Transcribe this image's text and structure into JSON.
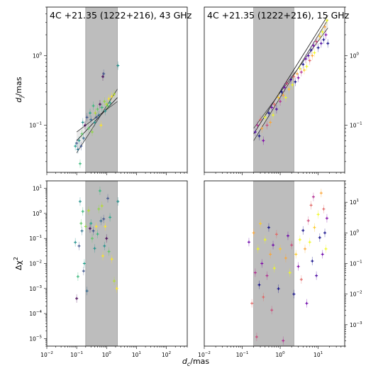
{
  "figure": {
    "xlabel_base": "d",
    "xlabel_sub": "c",
    "xlabel_unit": "/mas"
  },
  "chart_data": [
    {
      "panel": "top-left",
      "type": "scatter",
      "title": "4C +21.35 (1222+216), 43 GHz",
      "ylabel_base": "d",
      "ylabel_sub": "j",
      "ylabel_unit": "/mas",
      "xscale": "log",
      "yscale": "log",
      "xlim": [
        0.01,
        500
      ],
      "ylim": [
        0.021,
        5
      ],
      "y_tick_labels": [
        {
          "value": 0.1,
          "base": "10",
          "exp": "−1"
        },
        {
          "value": 1,
          "base": "10",
          "exp": "0"
        }
      ],
      "y_tick_side": "left",
      "shaded_band": [
        0.2,
        2.3
      ],
      "fit_lines": [
        {
          "x": [
            0.1,
            2.3
          ],
          "y": [
            0.06,
            0.25
          ]
        },
        {
          "x": [
            0.1,
            2.3
          ],
          "y": [
            0.04,
            0.33
          ]
        },
        {
          "x": [
            0.1,
            2.3
          ],
          "y": [
            0.08,
            0.22
          ]
        }
      ],
      "points": [
        {
          "x": 0.09,
          "y": 0.05,
          "c": "#1f9e89"
        },
        {
          "x": 0.1,
          "y": 0.055,
          "c": "#3b528b"
        },
        {
          "x": 0.11,
          "y": 0.045,
          "c": "#2c728e"
        },
        {
          "x": 0.12,
          "y": 0.06,
          "c": "#21918c"
        },
        {
          "x": 0.13,
          "y": 0.028,
          "c": "#35b779"
        },
        {
          "x": 0.14,
          "y": 0.05,
          "c": "#3b528b"
        },
        {
          "x": 0.15,
          "y": 0.075,
          "c": "#5ec962"
        },
        {
          "x": 0.16,
          "y": 0.11,
          "c": "#21918c"
        },
        {
          "x": 0.17,
          "y": 0.065,
          "c": "#31688e"
        },
        {
          "x": 0.19,
          "y": 0.1,
          "c": "#440154"
        },
        {
          "x": 0.22,
          "y": 0.13,
          "c": "#3b528b"
        },
        {
          "x": 0.25,
          "y": 0.09,
          "c": "#5ec962"
        },
        {
          "x": 0.28,
          "y": 0.15,
          "c": "#20a486"
        },
        {
          "x": 0.3,
          "y": 0.12,
          "c": "#31688e"
        },
        {
          "x": 0.33,
          "y": 0.08,
          "c": "#90d743"
        },
        {
          "x": 0.36,
          "y": 0.19,
          "c": "#35b779"
        },
        {
          "x": 0.4,
          "y": 0.11,
          "c": "#21918c"
        },
        {
          "x": 0.42,
          "y": 0.15,
          "c": "#b5de2b"
        },
        {
          "x": 0.45,
          "y": 0.13,
          "c": "#3b528b"
        },
        {
          "x": 0.5,
          "y": 0.17,
          "c": "#5ec962"
        },
        {
          "x": 0.55,
          "y": 0.14,
          "c": "#2c728e"
        },
        {
          "x": 0.6,
          "y": 0.2,
          "c": "#440154"
        },
        {
          "x": 0.65,
          "y": 0.1,
          "c": "#fde725"
        },
        {
          "x": 0.7,
          "y": 0.18,
          "c": "#35b779"
        },
        {
          "x": 0.75,
          "y": 0.5,
          "c": "#440154"
        },
        {
          "x": 0.8,
          "y": 0.55,
          "c": "#3b528b"
        },
        {
          "x": 0.85,
          "y": 0.22,
          "c": "#90d743"
        },
        {
          "x": 0.9,
          "y": 0.16,
          "c": "#21918c"
        },
        {
          "x": 1.0,
          "y": 0.2,
          "c": "#b5de2b"
        },
        {
          "x": 1.1,
          "y": 0.19,
          "c": "#5ec962"
        },
        {
          "x": 1.2,
          "y": 0.24,
          "c": "#fde725"
        },
        {
          "x": 1.3,
          "y": 0.21,
          "c": "#20a486"
        },
        {
          "x": 1.5,
          "y": 0.26,
          "c": "#fde725"
        },
        {
          "x": 1.8,
          "y": 0.28,
          "c": "#b5de2b"
        },
        {
          "x": 2.4,
          "y": 0.72,
          "c": "#21918c"
        }
      ]
    },
    {
      "panel": "top-right",
      "type": "scatter",
      "title": "4C +21.35 (1222+216), 15 GHz",
      "xscale": "log",
      "yscale": "log",
      "xlim": [
        0.01,
        50
      ],
      "ylim": [
        0.021,
        5
      ],
      "y_tick_labels": [
        {
          "value": 0.1,
          "base": "10",
          "exp": "−1"
        },
        {
          "value": 1,
          "base": "10",
          "exp": "0"
        }
      ],
      "y_tick_side": "right",
      "shaded_band": [
        0.2,
        2.3
      ],
      "fit_lines": [
        {
          "x": [
            0.2,
            18
          ],
          "y": [
            0.075,
            3.8
          ]
        },
        {
          "x": [
            0.2,
            18
          ],
          "y": [
            0.06,
            3.3
          ]
        },
        {
          "x": [
            0.2,
            18
          ],
          "y": [
            0.09,
            2.5
          ]
        }
      ],
      "points": [
        {
          "x": 0.22,
          "y": 0.08,
          "c": "#47039f"
        },
        {
          "x": 0.25,
          "y": 0.1,
          "c": "#b12a90"
        },
        {
          "x": 0.28,
          "y": 0.07,
          "c": "#0d0887"
        },
        {
          "x": 0.3,
          "y": 0.12,
          "c": "#e16462"
        },
        {
          "x": 0.33,
          "y": 0.09,
          "c": "#fca636"
        },
        {
          "x": 0.36,
          "y": 0.06,
          "c": "#7e03a8"
        },
        {
          "x": 0.4,
          "y": 0.13,
          "c": "#f0f921"
        },
        {
          "x": 0.45,
          "y": 0.1,
          "c": "#cc4778"
        },
        {
          "x": 0.5,
          "y": 0.15,
          "c": "#0d0887"
        },
        {
          "x": 0.55,
          "y": 0.11,
          "c": "#fca636"
        },
        {
          "x": 0.6,
          "y": 0.18,
          "c": "#6a00a8"
        },
        {
          "x": 0.65,
          "y": 0.14,
          "c": "#f0f921"
        },
        {
          "x": 0.7,
          "y": 0.2,
          "c": "#e16462"
        },
        {
          "x": 0.8,
          "y": 0.17,
          "c": "#47039f"
        },
        {
          "x": 0.9,
          "y": 0.25,
          "c": "#fdca26"
        },
        {
          "x": 1.0,
          "y": 0.22,
          "c": "#b12a90"
        },
        {
          "x": 1.1,
          "y": 0.3,
          "c": "#0d0887"
        },
        {
          "x": 1.2,
          "y": 0.27,
          "c": "#fca636"
        },
        {
          "x": 1.3,
          "y": 0.35,
          "c": "#6a00a8"
        },
        {
          "x": 1.4,
          "y": 0.25,
          "c": "#f0f921"
        },
        {
          "x": 1.5,
          "y": 0.4,
          "c": "#cc4778"
        },
        {
          "x": 1.7,
          "y": 0.33,
          "c": "#fdca26"
        },
        {
          "x": 1.9,
          "y": 0.45,
          "c": "#47039f"
        },
        {
          "x": 2.1,
          "y": 0.38,
          "c": "#f0f921"
        },
        {
          "x": 2.3,
          "y": 0.5,
          "c": "#e16462"
        },
        {
          "x": 2.5,
          "y": 0.42,
          "c": "#0d0887"
        },
        {
          "x": 2.8,
          "y": 0.55,
          "c": "#fca636"
        },
        {
          "x": 3.0,
          "y": 0.48,
          "c": "#7e03a8"
        },
        {
          "x": 3.3,
          "y": 0.65,
          "c": "#f0f921"
        },
        {
          "x": 3.6,
          "y": 0.58,
          "c": "#b12a90"
        },
        {
          "x": 4.0,
          "y": 0.75,
          "c": "#0d0887"
        },
        {
          "x": 4.3,
          "y": 0.62,
          "c": "#fdca26"
        },
        {
          "x": 4.7,
          "y": 0.9,
          "c": "#6a00a8"
        },
        {
          "x": 5.0,
          "y": 0.7,
          "c": "#f0f921"
        },
        {
          "x": 5.5,
          "y": 1.0,
          "c": "#47039f"
        },
        {
          "x": 6.0,
          "y": 0.85,
          "c": "#e16462"
        },
        {
          "x": 6.5,
          "y": 1.2,
          "c": "#0d0887"
        },
        {
          "x": 7.0,
          "y": 1.0,
          "c": "#fca636"
        },
        {
          "x": 7.5,
          "y": 1.4,
          "c": "#6a00a8"
        },
        {
          "x": 8.0,
          "y": 1.1,
          "c": "#f0f921"
        },
        {
          "x": 9.0,
          "y": 1.6,
          "c": "#cc4778"
        },
        {
          "x": 10,
          "y": 1.3,
          "c": "#0d0887"
        },
        {
          "x": 11,
          "y": 1.9,
          "c": "#fdca26"
        },
        {
          "x": 12,
          "y": 1.5,
          "c": "#47039f"
        },
        {
          "x": 13,
          "y": 2.2,
          "c": "#f0f921"
        },
        {
          "x": 14,
          "y": 1.7,
          "c": "#0d0887"
        },
        {
          "x": 15,
          "y": 2.6,
          "c": "#fca636"
        },
        {
          "x": 16,
          "y": 2.0,
          "c": "#7e03a8"
        },
        {
          "x": 17,
          "y": 3.2,
          "c": "#f0f921"
        },
        {
          "x": 18,
          "y": 1.5,
          "c": "#0d0887"
        }
      ]
    },
    {
      "panel": "bottom-left",
      "type": "scatter",
      "ylabel_base": "Δχ",
      "ylabel_sup": "2",
      "xscale": "log",
      "yscale": "log",
      "xlim": [
        0.01,
        500
      ],
      "ylim": [
        5e-06,
        20
      ],
      "x_tick_labels": [
        {
          "value": 0.01,
          "base": "10",
          "exp": "−2"
        },
        {
          "value": 0.1,
          "base": "10",
          "exp": "−1"
        },
        {
          "value": 1,
          "base": "10",
          "exp": "0"
        },
        {
          "value": 10,
          "base": "10",
          "exp": "1"
        },
        {
          "value": 100,
          "base": "10",
          "exp": "2"
        }
      ],
      "y_tick_labels": [
        {
          "value": 1e-05,
          "base": "10",
          "exp": "−5"
        },
        {
          "value": 0.0001,
          "base": "10",
          "exp": "−4"
        },
        {
          "value": 0.001,
          "base": "10",
          "exp": "−3"
        },
        {
          "value": 0.01,
          "base": "10",
          "exp": "−2"
        },
        {
          "value": 0.1,
          "base": "10",
          "exp": "−1"
        },
        {
          "value": 1,
          "base": "10",
          "exp": "0"
        },
        {
          "value": 10,
          "base": "10",
          "exp": "1"
        }
      ],
      "y_tick_side": "left",
      "shaded_band": [
        0.2,
        2.3
      ],
      "points": [
        {
          "x": 0.09,
          "y": 0.07,
          "c": "#21918c"
        },
        {
          "x": 0.1,
          "y": 0.0004,
          "c": "#440154"
        },
        {
          "x": 0.11,
          "y": 0.003,
          "c": "#35b779"
        },
        {
          "x": 0.12,
          "y": 0.05,
          "c": "#3b528b"
        },
        {
          "x": 0.13,
          "y": 3.0,
          "c": "#21918c"
        },
        {
          "x": 0.14,
          "y": 0.4,
          "c": "#5ec962"
        },
        {
          "x": 0.15,
          "y": 0.2,
          "c": "#2c728e"
        },
        {
          "x": 0.16,
          "y": 1.2,
          "c": "#35b779"
        },
        {
          "x": 0.17,
          "y": 0.005,
          "c": "#3b528b"
        },
        {
          "x": 0.18,
          "y": 0.01,
          "c": "#1f9e89"
        },
        {
          "x": 0.2,
          "y": 0.3,
          "c": "#90d743"
        },
        {
          "x": 0.22,
          "y": 0.0008,
          "c": "#31688e"
        },
        {
          "x": 0.25,
          "y": 1.3,
          "c": "#b5de2b"
        },
        {
          "x": 0.28,
          "y": 0.25,
          "c": "#440154"
        },
        {
          "x": 0.3,
          "y": 0.4,
          "c": "#20a486"
        },
        {
          "x": 0.33,
          "y": 0.1,
          "c": "#5ec962"
        },
        {
          "x": 0.36,
          "y": 0.2,
          "c": "#3b528b"
        },
        {
          "x": 0.4,
          "y": 0.04,
          "c": "#21918c"
        },
        {
          "x": 0.45,
          "y": 0.3,
          "c": "#fde725"
        },
        {
          "x": 0.5,
          "y": 0.15,
          "c": "#35b779"
        },
        {
          "x": 0.55,
          "y": 1.5,
          "c": "#90d743"
        },
        {
          "x": 0.6,
          "y": 8.0,
          "c": "#35b779"
        },
        {
          "x": 0.65,
          "y": 0.5,
          "c": "#31688e"
        },
        {
          "x": 0.7,
          "y": 2.0,
          "c": "#b5de2b"
        },
        {
          "x": 0.75,
          "y": 0.02,
          "c": "#fde725"
        },
        {
          "x": 0.8,
          "y": 0.6,
          "c": "#3b528b"
        },
        {
          "x": 0.85,
          "y": 0.05,
          "c": "#21918c"
        },
        {
          "x": 0.9,
          "y": 0.3,
          "c": "#fde725"
        },
        {
          "x": 1.0,
          "y": 0.1,
          "c": "#440154"
        },
        {
          "x": 1.1,
          "y": 4.0,
          "c": "#3b528b"
        },
        {
          "x": 1.2,
          "y": 0.03,
          "c": "#5ec962"
        },
        {
          "x": 1.3,
          "y": 0.7,
          "c": "#20a486"
        },
        {
          "x": 1.5,
          "y": 0.015,
          "c": "#fde725"
        },
        {
          "x": 1.8,
          "y": 0.002,
          "c": "#b5de2b"
        },
        {
          "x": 2.2,
          "y": 0.001,
          "c": "#fde725"
        },
        {
          "x": 2.4,
          "y": 3.0,
          "c": "#21918c"
        }
      ]
    },
    {
      "panel": "bottom-right",
      "type": "scatter",
      "xscale": "log",
      "yscale": "log",
      "xlim": [
        0.01,
        50
      ],
      "ylim": [
        0.0002,
        50
      ],
      "x_tick_labels": [
        {
          "value": 0.01,
          "base": "10",
          "exp": "−2"
        },
        {
          "value": 0.1,
          "base": "10",
          "exp": "−1"
        },
        {
          "value": 1,
          "base": "10",
          "exp": "0"
        },
        {
          "value": 10,
          "base": "10",
          "exp": "1"
        }
      ],
      "y_tick_labels": [
        {
          "value": 0.001,
          "base": "10",
          "exp": "−3"
        },
        {
          "value": 0.01,
          "base": "10",
          "exp": "−2"
        },
        {
          "value": 0.1,
          "base": "10",
          "exp": "−1"
        },
        {
          "value": 1,
          "base": "10",
          "exp": "0"
        },
        {
          "value": 10,
          "base": "10",
          "exp": "1"
        }
      ],
      "y_tick_side": "right",
      "shaded_band": [
        0.2,
        2.3
      ],
      "points": [
        {
          "x": 0.15,
          "y": 0.5,
          "c": "#6a00a8"
        },
        {
          "x": 0.18,
          "y": 0.005,
          "c": "#e16462"
        },
        {
          "x": 0.2,
          "y": 1.0,
          "c": "#fca636"
        },
        {
          "x": 0.22,
          "y": 0.05,
          "c": "#b12a90"
        },
        {
          "x": 0.24,
          "y": 0.0004,
          "c": "#cc4778"
        },
        {
          "x": 0.26,
          "y": 0.3,
          "c": "#f0f921"
        },
        {
          "x": 0.28,
          "y": 0.02,
          "c": "#0d0887"
        },
        {
          "x": 0.3,
          "y": 2.0,
          "c": "#fdca26"
        },
        {
          "x": 0.33,
          "y": 0.1,
          "c": "#7e03a8"
        },
        {
          "x": 0.36,
          "y": 0.008,
          "c": "#e16462"
        },
        {
          "x": 0.4,
          "y": 0.6,
          "c": "#f0f921"
        },
        {
          "x": 0.45,
          "y": 0.04,
          "c": "#b12a90"
        },
        {
          "x": 0.5,
          "y": 1.5,
          "c": "#0d0887"
        },
        {
          "x": 0.55,
          "y": 0.2,
          "c": "#fca636"
        },
        {
          "x": 0.6,
          "y": 0.003,
          "c": "#cc4778"
        },
        {
          "x": 0.65,
          "y": 0.4,
          "c": "#6a00a8"
        },
        {
          "x": 0.7,
          "y": 0.07,
          "c": "#f0f921"
        },
        {
          "x": 0.8,
          "y": 0.9,
          "c": "#e16462"
        },
        {
          "x": 0.9,
          "y": 0.015,
          "c": "#0d0887"
        },
        {
          "x": 1.0,
          "y": 0.3,
          "c": "#fdca26"
        },
        {
          "x": 1.2,
          "y": 0.0003,
          "c": "#b12a90"
        },
        {
          "x": 1.4,
          "y": 0.15,
          "c": "#fca636"
        },
        {
          "x": 1.6,
          "y": 0.8,
          "c": "#6a00a8"
        },
        {
          "x": 1.8,
          "y": 0.05,
          "c": "#f0f921"
        },
        {
          "x": 2.0,
          "y": 0.4,
          "c": "#cc4778"
        },
        {
          "x": 2.3,
          "y": 0.01,
          "c": "#0d0887"
        },
        {
          "x": 2.6,
          "y": 0.2,
          "c": "#fdca26"
        },
        {
          "x": 3.0,
          "y": 0.08,
          "c": "#7e03a8"
        },
        {
          "x": 3.3,
          "y": 0.6,
          "c": "#f0f921"
        },
        {
          "x": 3.6,
          "y": 0.03,
          "c": "#e16462"
        },
        {
          "x": 4.0,
          "y": 1.2,
          "c": "#0d0887"
        },
        {
          "x": 4.5,
          "y": 0.3,
          "c": "#fca636"
        },
        {
          "x": 5.0,
          "y": 0.005,
          "c": "#6a00a8"
        },
        {
          "x": 5.5,
          "y": 2.5,
          "c": "#cc4778"
        },
        {
          "x": 6.0,
          "y": 0.5,
          "c": "#f0f921"
        },
        {
          "x": 6.5,
          "y": 8.0,
          "c": "#e16462"
        },
        {
          "x": 7.0,
          "y": 0.12,
          "c": "#0d0887"
        },
        {
          "x": 7.5,
          "y": 15.0,
          "c": "#b12a90"
        },
        {
          "x": 8.0,
          "y": 1.5,
          "c": "#fdca26"
        },
        {
          "x": 9.0,
          "y": 0.04,
          "c": "#47039f"
        },
        {
          "x": 10,
          "y": 4.0,
          "c": "#f0f921"
        },
        {
          "x": 11,
          "y": 0.7,
          "c": "#0d0887"
        },
        {
          "x": 12,
          "y": 20.0,
          "c": "#fca636"
        },
        {
          "x": 13,
          "y": 0.2,
          "c": "#6a00a8"
        },
        {
          "x": 14,
          "y": 6.0,
          "c": "#e16462"
        },
        {
          "x": 15,
          "y": 1.0,
          "c": "#0d0887"
        },
        {
          "x": 16,
          "y": 0.3,
          "c": "#f0f921"
        },
        {
          "x": 17,
          "y": 3.0,
          "c": "#7e03a8"
        }
      ]
    }
  ]
}
